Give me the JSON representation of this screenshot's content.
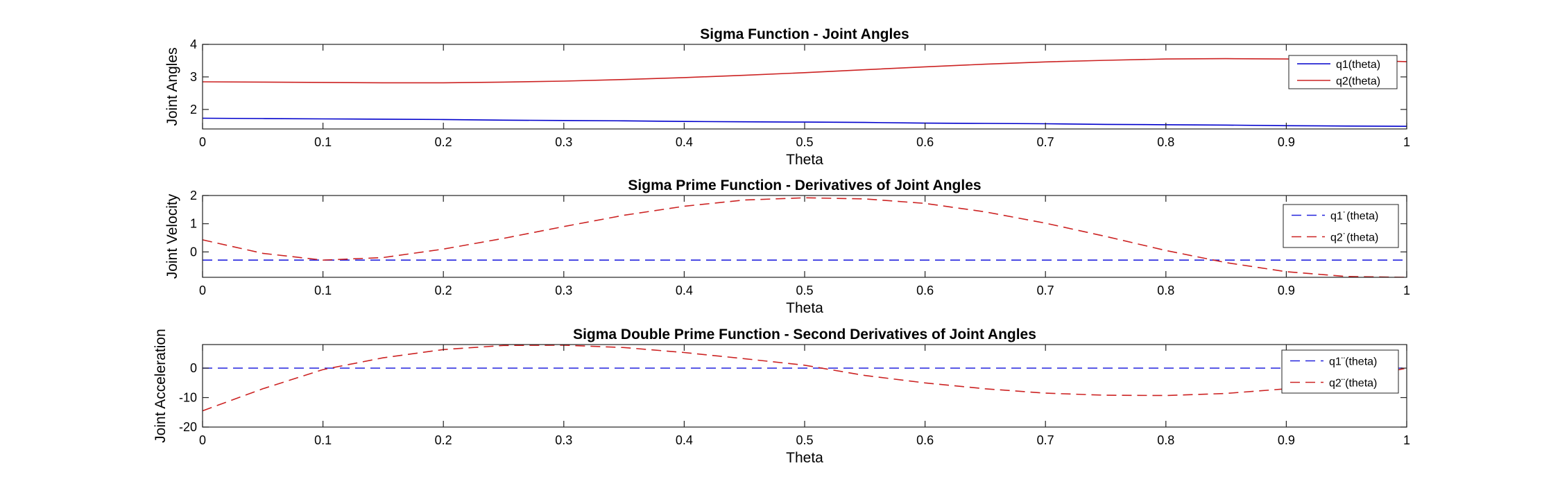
{
  "chart_data": [
    {
      "type": "line",
      "title": "Sigma Function - Joint Angles",
      "xlabel": "Theta",
      "ylabel": "Joint Angles",
      "xlim": [
        0,
        1
      ],
      "ylim": [
        1.4,
        4
      ],
      "xticks": [
        "0",
        "0.1",
        "0.2",
        "0.3",
        "0.4",
        "0.5",
        "0.6",
        "0.7",
        "0.8",
        "0.9",
        "1"
      ],
      "yticks": [
        "2",
        "3",
        "4"
      ],
      "ytick_values": [
        2,
        3,
        4
      ],
      "legend_position": "top-right",
      "grid": false,
      "x": [
        0,
        0.05,
        0.1,
        0.15,
        0.2,
        0.25,
        0.3,
        0.35,
        0.4,
        0.45,
        0.5,
        0.55,
        0.6,
        0.65,
        0.7,
        0.75,
        0.8,
        0.85,
        0.9,
        0.95,
        1
      ],
      "series": [
        {
          "name": "q1(theta)",
          "color": "#0000cc",
          "style": "solid",
          "values": [
            1.73,
            1.72,
            1.71,
            1.7,
            1.69,
            1.67,
            1.66,
            1.65,
            1.63,
            1.62,
            1.61,
            1.6,
            1.58,
            1.57,
            1.56,
            1.54,
            1.53,
            1.52,
            1.5,
            1.49,
            1.48
          ]
        },
        {
          "name": "q2(theta)",
          "color": "#cc2222",
          "style": "solid",
          "values": [
            2.85,
            2.84,
            2.83,
            2.82,
            2.82,
            2.84,
            2.87,
            2.92,
            2.98,
            3.05,
            3.13,
            3.22,
            3.31,
            3.39,
            3.46,
            3.51,
            3.55,
            3.56,
            3.55,
            3.52,
            3.47
          ]
        }
      ]
    },
    {
      "type": "line",
      "title": "Sigma Prime Function - Derivatives of Joint Angles",
      "xlabel": "Theta",
      "ylabel": "Joint Velocity",
      "xlim": [
        0,
        1
      ],
      "ylim": [
        -0.9,
        2
      ],
      "xticks": [
        "0",
        "0.1",
        "0.2",
        "0.3",
        "0.4",
        "0.5",
        "0.6",
        "0.7",
        "0.8",
        "0.9",
        "1"
      ],
      "yticks": [
        "0",
        "1",
        "2"
      ],
      "ytick_values": [
        0,
        1,
        2
      ],
      "legend_position": "top-right",
      "grid": false,
      "x": [
        0,
        0.05,
        0.1,
        0.15,
        0.2,
        0.25,
        0.3,
        0.35,
        0.4,
        0.45,
        0.5,
        0.55,
        0.6,
        0.65,
        0.7,
        0.75,
        0.8,
        0.85,
        0.9,
        0.95,
        1
      ],
      "series": [
        {
          "name": "q1˙(theta)",
          "color": "#2222dd",
          "style": "dashed",
          "values": [
            -0.29,
            -0.29,
            -0.29,
            -0.29,
            -0.29,
            -0.29,
            -0.29,
            -0.29,
            -0.29,
            -0.29,
            -0.29,
            -0.29,
            -0.29,
            -0.29,
            -0.29,
            -0.29,
            -0.29,
            -0.29,
            -0.29,
            -0.29,
            -0.29
          ]
        },
        {
          "name": "q2˙(theta)",
          "color": "#cc2222",
          "style": "dashed",
          "values": [
            0.43,
            -0.05,
            -0.29,
            -0.2,
            0.1,
            0.48,
            0.9,
            1.3,
            1.62,
            1.84,
            1.92,
            1.88,
            1.72,
            1.42,
            1.02,
            0.55,
            0.05,
            -0.38,
            -0.7,
            -0.87,
            -0.9
          ]
        }
      ]
    },
    {
      "type": "line",
      "title": "Sigma Double Prime Function - Second Derivatives of Joint Angles",
      "xlabel": "Theta",
      "ylabel": "Joint Acceleration",
      "xlim": [
        0,
        1
      ],
      "ylim": [
        -20,
        8
      ],
      "xticks": [
        "0",
        "0.1",
        "0.2",
        "0.3",
        "0.4",
        "0.5",
        "0.6",
        "0.7",
        "0.8",
        "0.9",
        "1"
      ],
      "yticks": [
        "-20",
        "-10",
        "0"
      ],
      "ytick_values": [
        -20,
        -10,
        0
      ],
      "legend_position": "top-right",
      "grid": false,
      "x": [
        0,
        0.05,
        0.1,
        0.15,
        0.2,
        0.25,
        0.3,
        0.35,
        0.4,
        0.45,
        0.5,
        0.55,
        0.6,
        0.65,
        0.7,
        0.75,
        0.8,
        0.85,
        0.9,
        0.95,
        1
      ],
      "series": [
        {
          "name": "q1¨(theta)",
          "color": "#2222dd",
          "style": "dashed",
          "values": [
            0,
            0,
            0,
            0,
            0,
            0,
            0,
            0,
            0,
            0,
            0,
            0,
            0,
            0,
            0,
            0,
            0,
            0,
            0,
            0,
            0
          ]
        },
        {
          "name": "q2¨(theta)",
          "color": "#cc2222",
          "style": "dashed",
          "values": [
            -14.5,
            -7.0,
            -0.5,
            3.5,
            6.3,
            7.7,
            7.8,
            7.0,
            5.3,
            3.2,
            1.0,
            -2.5,
            -5.0,
            -7.0,
            -8.5,
            -9.2,
            -9.3,
            -8.6,
            -7.0,
            -4.0,
            0.0
          ]
        }
      ]
    }
  ]
}
